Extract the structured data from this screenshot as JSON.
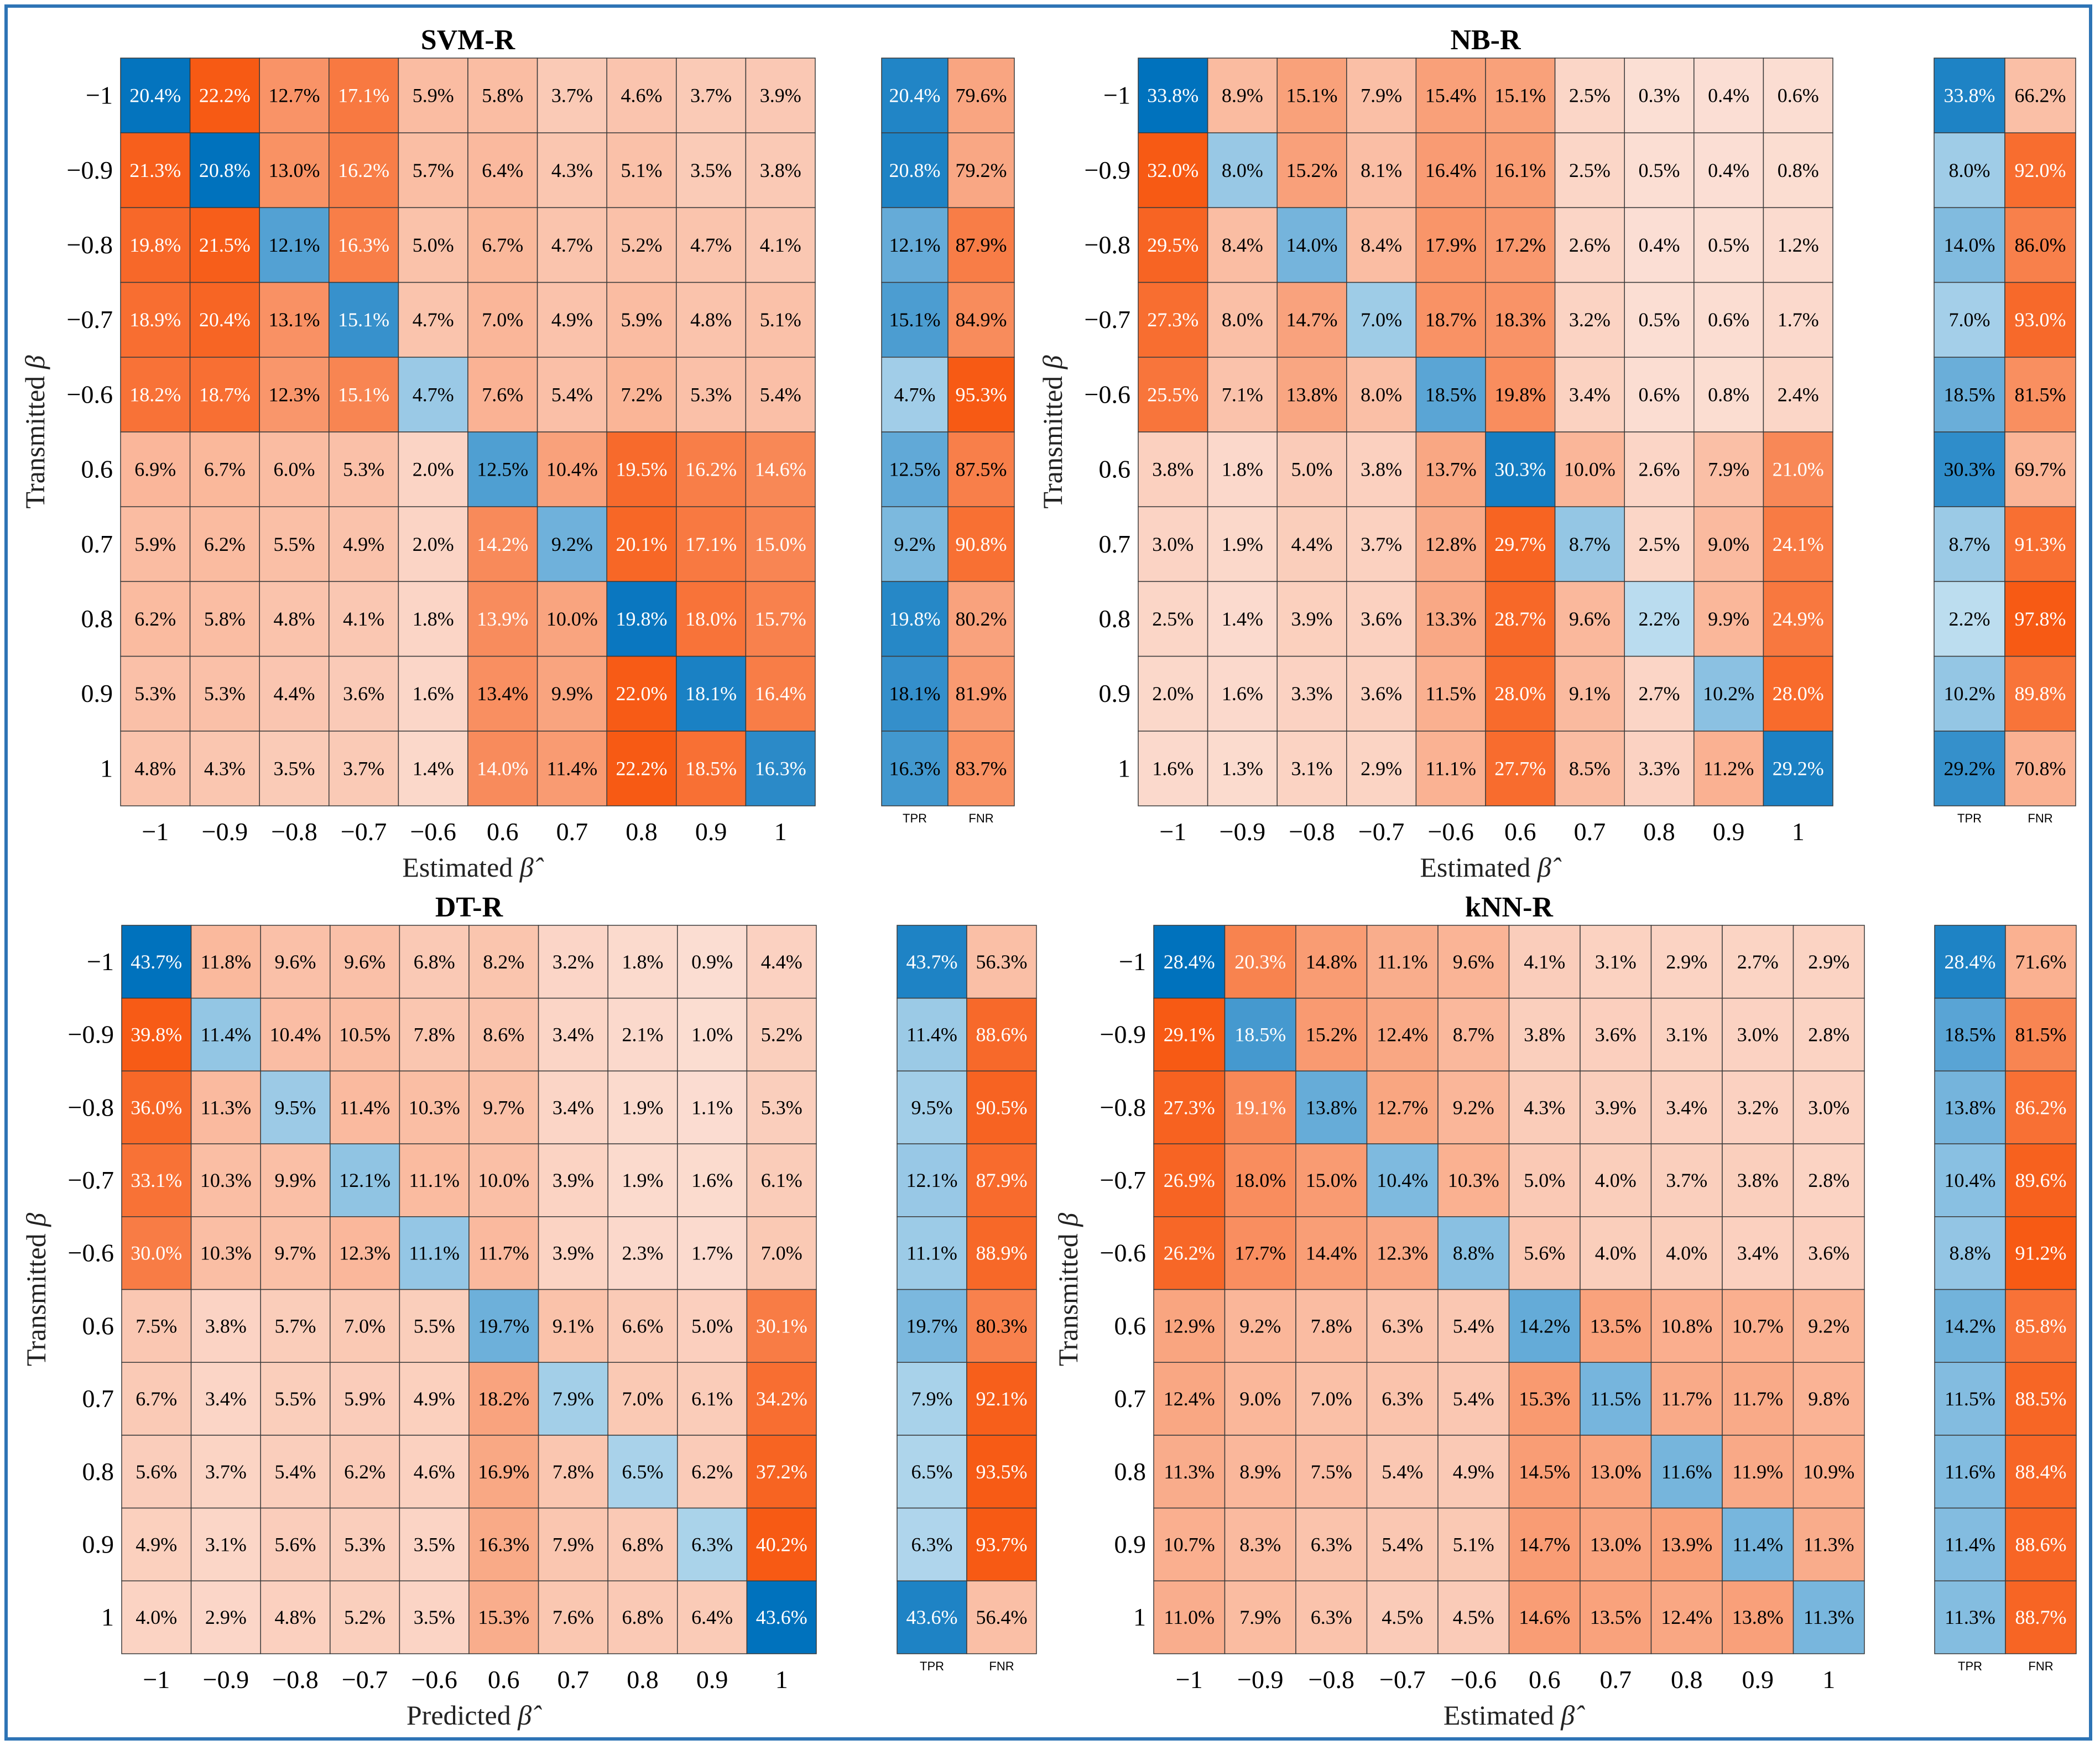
{
  "chart_data": [
    {
      "type": "heatmap",
      "title": "SVM-R",
      "xlabel": "Estimated",
      "xlabel_symbol": "β̂",
      "ylabel": "Transmitted",
      "ylabel_symbol": "β",
      "categories": [
        "−1",
        "−0.9",
        "−0.8",
        "−0.7",
        "−0.6",
        "0.6",
        "0.7",
        "0.8",
        "0.9",
        "1"
      ],
      "matrix": [
        [
          20.4,
          22.2,
          12.7,
          17.1,
          5.9,
          5.8,
          3.7,
          4.6,
          3.7,
          3.9
        ],
        [
          21.3,
          20.8,
          13.0,
          16.2,
          5.7,
          6.4,
          4.3,
          5.1,
          3.5,
          3.8
        ],
        [
          19.8,
          21.5,
          12.1,
          16.3,
          5.0,
          6.7,
          4.7,
          5.2,
          4.7,
          4.1
        ],
        [
          18.9,
          20.4,
          13.1,
          15.1,
          4.7,
          7.0,
          4.9,
          5.9,
          4.8,
          5.1
        ],
        [
          18.2,
          18.7,
          12.3,
          15.1,
          4.7,
          7.6,
          5.4,
          7.2,
          5.3,
          5.4
        ],
        [
          6.9,
          6.7,
          6.0,
          5.3,
          2.0,
          12.5,
          10.4,
          19.5,
          16.2,
          14.6
        ],
        [
          5.9,
          6.2,
          5.5,
          4.9,
          2.0,
          14.2,
          9.2,
          20.1,
          17.1,
          15.0
        ],
        [
          6.2,
          5.8,
          4.8,
          4.1,
          1.8,
          13.9,
          10.0,
          19.8,
          18.0,
          15.7
        ],
        [
          5.3,
          5.3,
          4.4,
          3.6,
          1.6,
          13.4,
          9.9,
          22.0,
          18.1,
          16.4
        ],
        [
          4.8,
          4.3,
          3.5,
          3.7,
          1.4,
          14.0,
          11.4,
          22.2,
          18.5,
          16.3
        ]
      ],
      "tpr": [
        20.4,
        20.8,
        12.1,
        15.1,
        4.7,
        12.5,
        9.2,
        19.8,
        18.1,
        16.3
      ],
      "fnr": [
        79.6,
        79.2,
        87.9,
        84.9,
        95.3,
        87.5,
        90.8,
        80.2,
        81.9,
        83.7
      ],
      "tpr_label": "TPR",
      "fnr_label": "FNR"
    },
    {
      "type": "heatmap",
      "title": "NB-R",
      "xlabel": "Estimated",
      "xlabel_symbol": "β̂",
      "ylabel": "Transmitted",
      "ylabel_symbol": "β",
      "categories": [
        "−1",
        "−0.9",
        "−0.8",
        "−0.7",
        "−0.6",
        "0.6",
        "0.7",
        "0.8",
        "0.9",
        "1"
      ],
      "matrix": [
        [
          33.8,
          8.9,
          15.1,
          7.9,
          15.4,
          15.1,
          2.5,
          0.3,
          0.4,
          0.6
        ],
        [
          32.0,
          8.0,
          15.2,
          8.1,
          16.4,
          16.1,
          2.5,
          0.5,
          0.4,
          0.8
        ],
        [
          29.5,
          8.4,
          14.0,
          8.4,
          17.9,
          17.2,
          2.6,
          0.4,
          0.5,
          1.2
        ],
        [
          27.3,
          8.0,
          14.7,
          7.0,
          18.7,
          18.3,
          3.2,
          0.5,
          0.6,
          1.7
        ],
        [
          25.5,
          7.1,
          13.8,
          8.0,
          18.5,
          19.8,
          3.4,
          0.6,
          0.8,
          2.4
        ],
        [
          3.8,
          1.8,
          5.0,
          3.8,
          13.7,
          30.3,
          10.0,
          2.6,
          7.9,
          21.0
        ],
        [
          3.0,
          1.9,
          4.4,
          3.7,
          12.8,
          29.7,
          8.7,
          2.5,
          9.0,
          24.1
        ],
        [
          2.5,
          1.4,
          3.9,
          3.6,
          13.3,
          28.7,
          9.6,
          2.2,
          9.9,
          24.9
        ],
        [
          2.0,
          1.6,
          3.3,
          3.6,
          11.5,
          28.0,
          9.1,
          2.7,
          10.2,
          28.0
        ],
        [
          1.6,
          1.3,
          3.1,
          2.9,
          11.1,
          27.7,
          8.5,
          3.3,
          11.2,
          29.2
        ]
      ],
      "tpr": [
        33.8,
        8.0,
        14.0,
        7.0,
        18.5,
        30.3,
        8.7,
        2.2,
        10.2,
        29.2
      ],
      "fnr": [
        66.2,
        92.0,
        86.0,
        93.0,
        81.5,
        69.7,
        91.3,
        97.8,
        89.8,
        70.8
      ],
      "tpr_label": "TPR",
      "fnr_label": "FNR"
    },
    {
      "type": "heatmap",
      "title": "DT-R",
      "xlabel": "Predicted",
      "xlabel_symbol": "β̂",
      "ylabel": "Transmitted",
      "ylabel_symbol": "β",
      "categories": [
        "−1",
        "−0.9",
        "−0.8",
        "−0.7",
        "−0.6",
        "0.6",
        "0.7",
        "0.8",
        "0.9",
        "1"
      ],
      "matrix": [
        [
          43.7,
          11.8,
          9.6,
          9.6,
          6.8,
          8.2,
          3.2,
          1.8,
          0.9,
          4.4
        ],
        [
          39.8,
          11.4,
          10.4,
          10.5,
          7.8,
          8.6,
          3.4,
          2.1,
          1.0,
          5.2
        ],
        [
          36.0,
          11.3,
          9.5,
          11.4,
          10.3,
          9.7,
          3.4,
          1.9,
          1.1,
          5.3
        ],
        [
          33.1,
          10.3,
          9.9,
          12.1,
          11.1,
          10.0,
          3.9,
          1.9,
          1.6,
          6.1
        ],
        [
          30.0,
          10.3,
          9.7,
          12.3,
          11.1,
          11.7,
          3.9,
          2.3,
          1.7,
          7.0
        ],
        [
          7.5,
          3.8,
          5.7,
          7.0,
          5.5,
          19.7,
          9.1,
          6.6,
          5.0,
          30.1
        ],
        [
          6.7,
          3.4,
          5.5,
          5.9,
          4.9,
          18.2,
          7.9,
          7.0,
          6.1,
          34.2
        ],
        [
          5.6,
          3.7,
          5.4,
          6.2,
          4.6,
          16.9,
          7.8,
          6.5,
          6.2,
          37.2
        ],
        [
          4.9,
          3.1,
          5.6,
          5.3,
          3.5,
          16.3,
          7.9,
          6.8,
          6.3,
          40.2
        ],
        [
          4.0,
          2.9,
          4.8,
          5.2,
          3.5,
          15.3,
          7.6,
          6.8,
          6.4,
          43.6
        ]
      ],
      "tpr": [
        43.7,
        11.4,
        9.5,
        12.1,
        11.1,
        19.7,
        7.9,
        6.5,
        6.3,
        43.6
      ],
      "fnr": [
        56.3,
        88.6,
        90.5,
        87.9,
        88.9,
        80.3,
        92.1,
        93.5,
        93.7,
        56.4
      ],
      "tpr_label": "TPR",
      "fnr_label": "FNR"
    },
    {
      "type": "heatmap",
      "title": "kNN-R",
      "xlabel": "Estimated",
      "xlabel_symbol": "β̂",
      "ylabel": "Transmitted",
      "ylabel_symbol": "β",
      "categories": [
        "−1",
        "−0.9",
        "−0.8",
        "−0.7",
        "−0.6",
        "0.6",
        "0.7",
        "0.8",
        "0.9",
        "1"
      ],
      "matrix": [
        [
          28.4,
          20.3,
          14.8,
          11.1,
          9.6,
          4.1,
          3.1,
          2.9,
          2.7,
          2.9
        ],
        [
          29.1,
          18.5,
          15.2,
          12.4,
          8.7,
          3.8,
          3.6,
          3.1,
          3.0,
          2.8
        ],
        [
          27.3,
          19.1,
          13.8,
          12.7,
          9.2,
          4.3,
          3.9,
          3.4,
          3.2,
          3.0
        ],
        [
          26.9,
          18.0,
          15.0,
          10.4,
          10.3,
          5.0,
          4.0,
          3.7,
          3.8,
          2.8
        ],
        [
          26.2,
          17.7,
          14.4,
          12.3,
          8.8,
          5.6,
          4.0,
          4.0,
          3.4,
          3.6
        ],
        [
          12.9,
          9.2,
          7.8,
          6.3,
          5.4,
          14.2,
          13.5,
          10.8,
          10.7,
          9.2
        ],
        [
          12.4,
          9.0,
          7.0,
          6.3,
          5.4,
          15.3,
          11.5,
          11.7,
          11.7,
          9.8
        ],
        [
          11.3,
          8.9,
          7.5,
          5.4,
          4.9,
          14.5,
          13.0,
          11.6,
          11.9,
          10.9
        ],
        [
          10.7,
          8.3,
          6.3,
          5.4,
          5.1,
          14.7,
          13.0,
          13.9,
          11.4,
          11.3
        ],
        [
          11.0,
          7.9,
          6.3,
          4.5,
          4.5,
          14.6,
          13.5,
          12.4,
          13.8,
          11.3
        ]
      ],
      "tpr": [
        28.4,
        18.5,
        13.8,
        10.4,
        8.8,
        14.2,
        11.5,
        11.6,
        11.4,
        11.3
      ],
      "fnr": [
        71.6,
        81.5,
        86.2,
        89.6,
        91.2,
        85.8,
        88.5,
        88.4,
        88.6,
        88.7
      ],
      "tpr_label": "TPR",
      "fnr_label": "FNR"
    }
  ],
  "colors": {
    "frame": "#2e74b5",
    "grid": "#3a3a3a",
    "blue_light": "#c7e3f2",
    "blue_dark": "#0072bd",
    "orange_light": "#fbe0d6",
    "orange_dark": "#f75a14"
  }
}
